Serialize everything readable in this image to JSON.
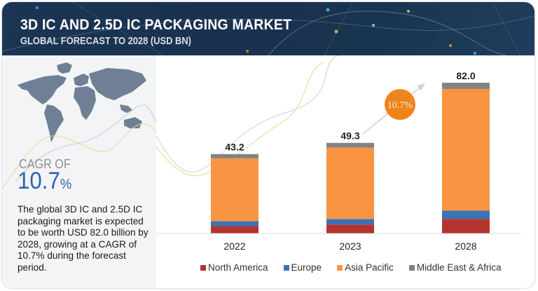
{
  "header": {
    "title": "3D IC AND 2.5D IC PACKAGING MARKET",
    "subtitle": "GLOBAL FORECAST TO 2028 (USD BN)"
  },
  "summary": {
    "map_icon": "world-map-icon",
    "cagr_label": "CAGR OF",
    "cagr_value": "10.7",
    "cagr_unit": "%",
    "description": "The global 3D IC and 2.5D IC packaging market is expected to be worth USD 82.0 billion by 2028, growing at a CAGR of 10.7% during the forecast period."
  },
  "badge": {
    "text": "10.7%",
    "color": "#f0841c"
  },
  "chart_data": {
    "type": "bar",
    "stacked": true,
    "title": "3D IC AND 2.5D IC PACKAGING MARKET",
    "subtitle": "GLOBAL FORECAST TO 2028 (USD BN)",
    "xlabel": "",
    "ylabel": "",
    "categories": [
      "2022",
      "2023",
      "2028"
    ],
    "totals": [
      "43.2",
      "49.3",
      "82.0"
    ],
    "series": [
      {
        "name": "North America",
        "color": "#b5332e",
        "values": [
          4.0,
          4.9,
          7.9
        ]
      },
      {
        "name": "Europe",
        "color": "#3b73b2",
        "values": [
          2.7,
          3.0,
          4.6
        ]
      },
      {
        "name": "Asia Pacific",
        "color": "#f99442",
        "values": [
          34.2,
          38.8,
          66.1
        ]
      },
      {
        "name": "Middle East & Africa",
        "color": "#838383",
        "values": [
          2.3,
          2.6,
          3.4
        ]
      }
    ],
    "ylim": [
      0,
      82
    ],
    "grid": false,
    "legend_position": "bottom",
    "annotations": [
      "10.7%"
    ]
  }
}
